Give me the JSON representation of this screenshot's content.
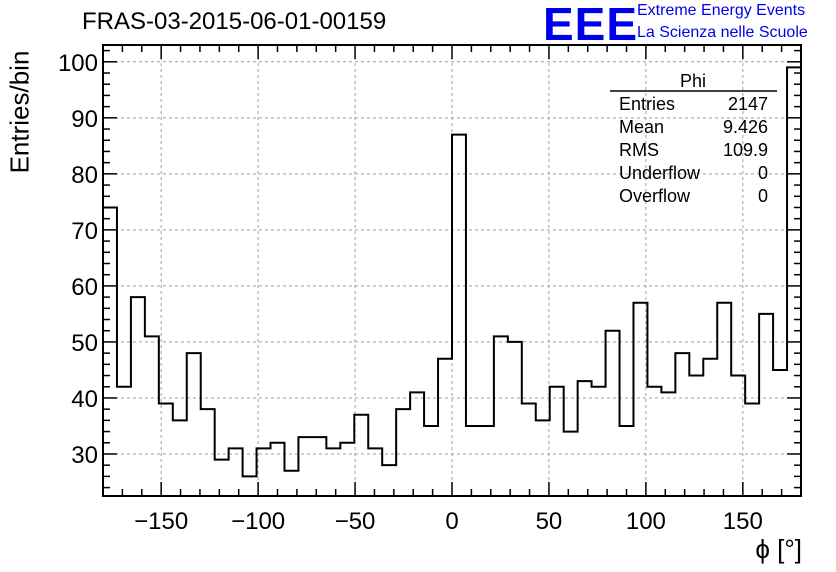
{
  "title": "FRAS-03-2015-06-01-00159",
  "brand": {
    "logo": "EEE",
    "line1": "Extreme Energy Events",
    "line2": "La Scienza nelle Scuole",
    "color": "#0000ee"
  },
  "stats": {
    "name": "Phi",
    "rows": [
      {
        "label": "Entries",
        "value": "2147"
      },
      {
        "label": "Mean",
        "value": "9.426"
      },
      {
        "label": "RMS",
        "value": "109.9"
      },
      {
        "label": "Underflow",
        "value": "0"
      },
      {
        "label": "Overflow",
        "value": "0"
      }
    ]
  },
  "chart_data": {
    "type": "bar",
    "style": "step-histogram",
    "title": "FRAS-03-2015-06-01-00159",
    "xlabel": "ϕ [°]",
    "ylabel": "Entries/bin",
    "xlim": [
      -180,
      180
    ],
    "ylim": [
      22.5,
      103
    ],
    "bin_width": 7.2,
    "x_ticks": [
      -150,
      -100,
      -50,
      0,
      50,
      100,
      150
    ],
    "x_tick_labels": [
      "−150",
      "−100",
      "−50",
      "0",
      "50",
      "100",
      "150"
    ],
    "y_ticks": [
      30,
      40,
      50,
      60,
      70,
      80,
      90,
      100
    ],
    "y_tick_labels": [
      "30",
      "40",
      "50",
      "60",
      "70",
      "80",
      "90",
      "100"
    ],
    "grid": true,
    "values": [
      74,
      42,
      58,
      51,
      39,
      36,
      48,
      38,
      29,
      31,
      26,
      31,
      32,
      27,
      33,
      33,
      31,
      32,
      37,
      31,
      28,
      38,
      41,
      35,
      47,
      87,
      35,
      35,
      51,
      50,
      39,
      36,
      42,
      34,
      43,
      42,
      52,
      35,
      57,
      42,
      41,
      48,
      44,
      47,
      57,
      44,
      39,
      55,
      45,
      99
    ]
  }
}
